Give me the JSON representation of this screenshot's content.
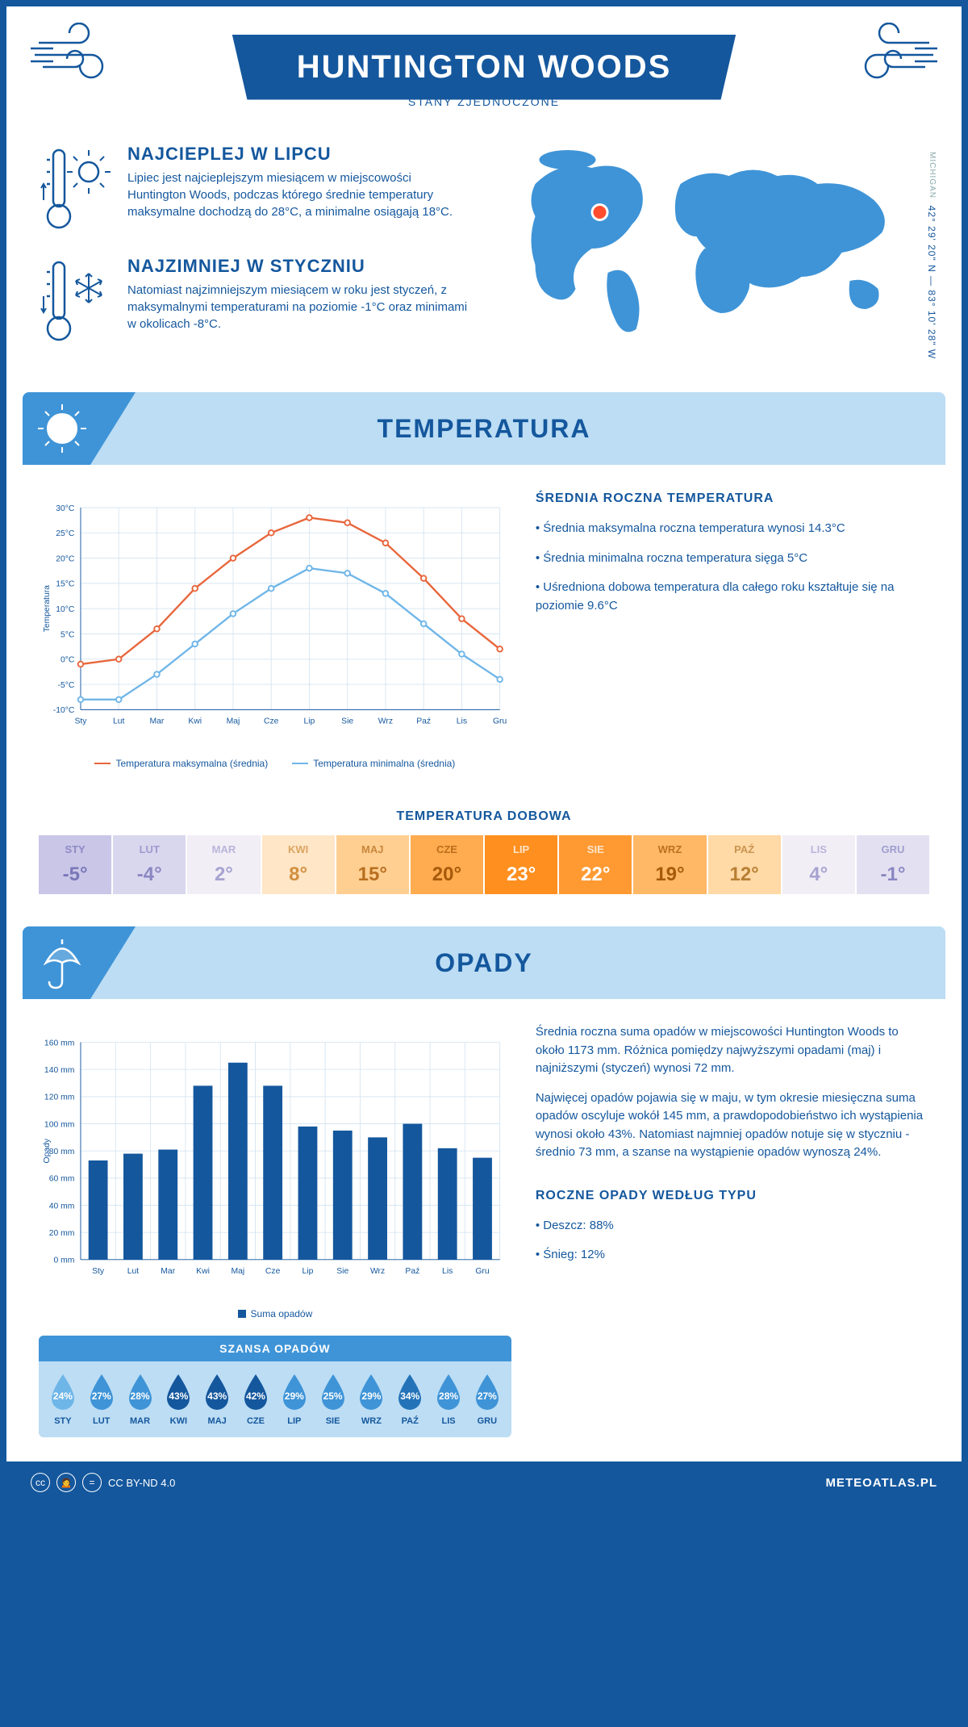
{
  "header": {
    "title": "HUNTINGTON WOODS",
    "subtitle": "STANY ZJEDNOCZONE",
    "coords": "42° 29' 20\" N — 83° 10' 28\" W",
    "state": "MICHIGAN"
  },
  "intro": {
    "hot": {
      "title": "NAJCIEPLEJ W LIPCU",
      "text": "Lipiec jest najcieplejszym miesiącem w miejscowości Huntington Woods, podczas którego średnie temperatury maksymalne dochodzą do 28°C, a minimalne osiągają 18°C."
    },
    "cold": {
      "title": "NAJZIMNIEJ W STYCZNIU",
      "text": "Natomiast najzimniejszym miesiącem w roku jest styczeń, z maksymalnymi temperaturami na poziomie -1°C oraz minimami w okolicach -8°C."
    }
  },
  "temperature": {
    "banner": "TEMPERATURA",
    "chart": {
      "type": "line",
      "months": [
        "Sty",
        "Lut",
        "Mar",
        "Kwi",
        "Maj",
        "Cze",
        "Lip",
        "Sie",
        "Wrz",
        "Paź",
        "Lis",
        "Gru"
      ],
      "max": [
        -1,
        0,
        6,
        14,
        20,
        25,
        28,
        27,
        23,
        16,
        8,
        2
      ],
      "min": [
        -8,
        -8,
        -3,
        3,
        9,
        14,
        18,
        17,
        13,
        7,
        1,
        -4
      ],
      "ylim": [
        -10,
        30
      ],
      "ytick_step": 5,
      "ylabel": "Temperatura",
      "max_color": "#e8663c",
      "min_color": "#6fb6e8",
      "grid_color": "#d7e6f2",
      "axis_color": "#14579d",
      "font_size": 11,
      "legend_max": "Temperatura maksymalna (średnia)",
      "legend_min": "Temperatura minimalna (średnia)"
    },
    "summary": {
      "title": "ŚREDNIA ROCZNA TEMPERATURA",
      "p1": "• Średnia maksymalna roczna temperatura wynosi 14.3°C",
      "p2": "• Średnia minimalna roczna temperatura sięga 5°C",
      "p3": "• Uśredniona dobowa temperatura dla całego roku kształtuje się na poziomie 9.6°C"
    },
    "daily": {
      "title": "TEMPERATURA DOBOWA",
      "months": [
        "STY",
        "LUT",
        "MAR",
        "KWI",
        "MAJ",
        "CZE",
        "LIP",
        "SIE",
        "WRZ",
        "PAŹ",
        "LIS",
        "GRU"
      ],
      "values": [
        "-5°",
        "-4°",
        "2°",
        "8°",
        "15°",
        "20°",
        "23°",
        "22°",
        "19°",
        "12°",
        "4°",
        "-1°"
      ],
      "bg": [
        "#c9c6e8",
        "#d9d7ee",
        "#f2eef6",
        "#ffe6c7",
        "#ffcf91",
        "#ffab4f",
        "#ff8f1f",
        "#ff9a33",
        "#ffb866",
        "#ffd9a6",
        "#f2eef6",
        "#e3e1f1"
      ],
      "fg": [
        "#7a77b8",
        "#8a87c2",
        "#a6a3d1",
        "#d18f3f",
        "#b86f1f",
        "#a65a0a",
        "#ffffff",
        "#ffffff",
        "#a65a0a",
        "#b87f33",
        "#a6a3d1",
        "#8a87c2"
      ]
    }
  },
  "precip": {
    "banner": "OPADY",
    "chart": {
      "type": "bar",
      "months": [
        "Sty",
        "Lut",
        "Mar",
        "Kwi",
        "Maj",
        "Cze",
        "Lip",
        "Sie",
        "Wrz",
        "Paź",
        "Lis",
        "Gru"
      ],
      "values": [
        73,
        78,
        81,
        128,
        145,
        128,
        98,
        95,
        90,
        100,
        82,
        75
      ],
      "ylim": [
        0,
        160
      ],
      "ytick_step": 20,
      "ylabel": "Opady",
      "bar_color": "#14579d",
      "grid_color": "#d7e6f2",
      "legend": "Suma opadów",
      "font_size": 11
    },
    "text1": "Średnia roczna suma opadów w miejscowości Huntington Woods to około 1173 mm. Różnica pomiędzy najwyższymi opadami (maj) i najniższymi (styczeń) wynosi 72 mm.",
    "text2": "Najwięcej opadów pojawia się w maju, w tym okresie miesięczna suma opadów oscyluje wokół 145 mm, a prawdopodobieństwo ich wystąpienia wynosi około 43%. Natomiast najmniej opadów notuje się w styczniu - średnio 73 mm, a szanse na wystąpienie opadów wynoszą 24%.",
    "chance": {
      "title": "SZANSA OPADÓW",
      "months": [
        "STY",
        "LUT",
        "MAR",
        "KWI",
        "MAJ",
        "CZE",
        "LIP",
        "SIE",
        "WRZ",
        "PAŹ",
        "LIS",
        "GRU"
      ],
      "values": [
        "24%",
        "27%",
        "28%",
        "43%",
        "43%",
        "42%",
        "29%",
        "25%",
        "29%",
        "34%",
        "28%",
        "27%"
      ],
      "drop_colors": [
        "#6fb6e8",
        "#3f94d7",
        "#3f94d7",
        "#14579d",
        "#14579d",
        "#14579d",
        "#3f94d7",
        "#3f94d7",
        "#3f94d7",
        "#2473b8",
        "#3f94d7",
        "#3f94d7"
      ]
    },
    "by_type": {
      "title": "ROCZNE OPADY WEDŁUG TYPU",
      "p1": "• Deszcz: 88%",
      "p2": "• Śnieg: 12%"
    }
  },
  "footer": {
    "license": "CC BY-ND 4.0",
    "brand": "METEOATLAS.PL"
  }
}
